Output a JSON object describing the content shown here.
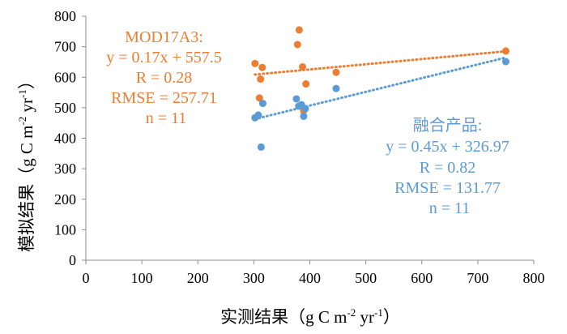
{
  "chart_data": {
    "type": "scatter",
    "xlabel": "实测结果（g C m-2 yr-1）",
    "ylabel": "模拟结果（g C m-2 yr-1）",
    "xlabel_parts": {
      "main": "实测结果（g C m",
      "sup1": "-2",
      "mid": " yr",
      "sup2": "-1",
      "end": "）"
    },
    "ylabel_parts": {
      "main": "模拟结果（g C m",
      "sup1": "-2",
      "mid": " yr",
      "sup2": "-1",
      "end": "）"
    },
    "xlim": [
      0,
      800
    ],
    "ylim": [
      0,
      800
    ],
    "x_ticks": [
      0,
      100,
      200,
      300,
      400,
      500,
      600,
      700,
      800
    ],
    "y_ticks": [
      0,
      100,
      200,
      300,
      400,
      500,
      600,
      700,
      800
    ],
    "grid": false,
    "series": [
      {
        "name": "MOD17A3",
        "color": "#ED7D31",
        "points": [
          [
            302,
            645
          ],
          [
            310,
            532
          ],
          [
            312,
            594
          ],
          [
            315,
            632
          ],
          [
            378,
            707
          ],
          [
            381,
            755
          ],
          [
            387,
            634
          ],
          [
            389,
            490
          ],
          [
            393,
            578
          ],
          [
            447,
            616
          ],
          [
            750,
            686
          ]
        ],
        "trendline": {
          "slope": 0.17,
          "intercept": 557.5,
          "x_range": [
            302,
            750
          ]
        },
        "annotation": [
          "MOD17A3:",
          "y = 0.17x + 557.5",
          "R = 0.28",
          "RMSE = 257.71",
          "n = 11"
        ]
      },
      {
        "name": "融合产品",
        "color": "#5B9BD5",
        "points": [
          [
            302,
            467
          ],
          [
            308,
            476
          ],
          [
            313,
            371
          ],
          [
            316,
            514
          ],
          [
            376,
            529
          ],
          [
            380,
            505
          ],
          [
            385,
            510
          ],
          [
            389,
            472
          ],
          [
            392,
            497
          ],
          [
            447,
            563
          ],
          [
            750,
            651
          ]
        ],
        "trendline": {
          "slope": 0.45,
          "intercept": 326.97,
          "x_range": [
            302,
            750
          ]
        },
        "annotation": [
          "融合产品:",
          "y = 0.45x + 326.97",
          "R = 0.82",
          "RMSE = 131.77",
          "n = 11"
        ]
      }
    ]
  }
}
